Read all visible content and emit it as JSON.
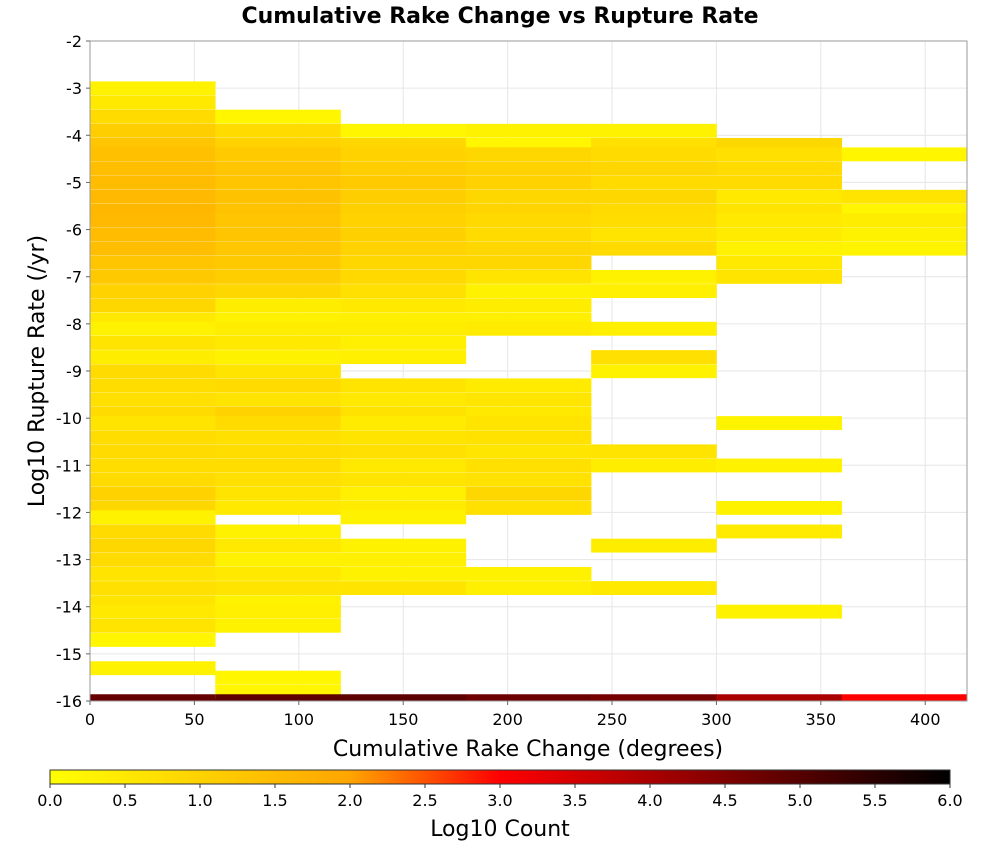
{
  "chart_data": {
    "type": "heatmap",
    "title": "Cumulative Rake Change vs Rupture Rate",
    "xlabel": "Cumulative Rake Change (degrees)",
    "ylabel": "Log10 Rupture Rate (/yr)",
    "xlim": [
      0,
      420
    ],
    "ylim": [
      -16,
      -2
    ],
    "x_ticks": [
      0,
      50,
      100,
      150,
      200,
      250,
      300,
      350,
      400
    ],
    "y_ticks": [
      -16,
      -15,
      -14,
      -13,
      -12,
      -11,
      -10,
      -9,
      -8,
      -7,
      -6,
      -5,
      -4,
      -3,
      -2
    ],
    "x_bin_width": 60,
    "y_bin_height": 0.286,
    "grid": true,
    "colorbar": {
      "label": "Log10 Count",
      "range": [
        0.0,
        6.0
      ],
      "ticks": [
        "0.0",
        "0.5",
        "1.0",
        "1.5",
        "2.0",
        "2.5",
        "3.0",
        "3.5",
        "4.0",
        "4.5",
        "5.0",
        "5.5",
        "6.0"
      ],
      "colors": [
        "#ffff00",
        "#ffa500",
        "#ff0000",
        "#000000"
      ]
    },
    "series": [
      {
        "x_start": 0,
        "cells": [
          [
            -3.0,
            0.3
          ],
          [
            -3.3,
            0.5
          ],
          [
            -3.6,
            0.8
          ],
          [
            -3.9,
            1.1
          ],
          [
            -4.2,
            1.3
          ],
          [
            -4.4,
            1.4
          ],
          [
            -4.7,
            1.45
          ],
          [
            -5.0,
            1.5
          ],
          [
            -5.3,
            1.55
          ],
          [
            -5.6,
            1.6
          ],
          [
            -5.8,
            1.55
          ],
          [
            -6.1,
            1.5
          ],
          [
            -6.4,
            1.45
          ],
          [
            -6.7,
            1.3
          ],
          [
            -7.0,
            1.2
          ],
          [
            -7.3,
            1.0
          ],
          [
            -7.6,
            0.9
          ],
          [
            -7.9,
            0.5
          ],
          [
            -8.1,
            0.3
          ],
          [
            -8.4,
            0.6
          ],
          [
            -8.7,
            0.4
          ],
          [
            -9.0,
            0.8
          ],
          [
            -9.3,
            0.75
          ],
          [
            -9.6,
            0.7
          ],
          [
            -9.9,
            0.8
          ],
          [
            -10.1,
            0.6
          ],
          [
            -10.4,
            0.75
          ],
          [
            -10.7,
            0.8
          ],
          [
            -11.0,
            0.75
          ],
          [
            -11.3,
            0.8
          ],
          [
            -11.6,
            1.0
          ],
          [
            -11.9,
            0.9
          ],
          [
            -12.1,
            0.3
          ],
          [
            -12.4,
            0.8
          ],
          [
            -12.7,
            0.9
          ],
          [
            -13.0,
            0.8
          ],
          [
            -13.3,
            0.6
          ],
          [
            -13.6,
            0.7
          ],
          [
            -13.9,
            0.6
          ],
          [
            -14.1,
            0.5
          ],
          [
            -14.4,
            0.6
          ],
          [
            -14.7,
            0.2
          ],
          [
            -15.3,
            0.3
          ],
          [
            -16.0,
            4.8
          ]
        ]
      },
      {
        "x_start": 60,
        "cells": [
          [
            -3.6,
            0.2
          ],
          [
            -3.9,
            0.8
          ],
          [
            -4.2,
            1.0
          ],
          [
            -4.4,
            1.15
          ],
          [
            -4.7,
            1.3
          ],
          [
            -5.0,
            1.3
          ],
          [
            -5.3,
            1.35
          ],
          [
            -5.6,
            1.35
          ],
          [
            -5.8,
            1.3
          ],
          [
            -6.1,
            1.3
          ],
          [
            -6.4,
            1.25
          ],
          [
            -6.7,
            1.2
          ],
          [
            -7.0,
            1.1
          ],
          [
            -7.3,
            0.9
          ],
          [
            -7.6,
            0.4
          ],
          [
            -7.9,
            0.3
          ],
          [
            -8.1,
            0.4
          ],
          [
            -8.4,
            0.5
          ],
          [
            -8.7,
            0.3
          ],
          [
            -9.0,
            0.6
          ],
          [
            -9.3,
            0.8
          ],
          [
            -9.6,
            0.6
          ],
          [
            -9.9,
            1.0
          ],
          [
            -10.1,
            0.8
          ],
          [
            -10.4,
            0.7
          ],
          [
            -10.7,
            0.75
          ],
          [
            -11.0,
            0.75
          ],
          [
            -11.3,
            0.7
          ],
          [
            -11.6,
            0.6
          ],
          [
            -11.9,
            0.5
          ],
          [
            -12.4,
            0.3
          ],
          [
            -12.7,
            0.5
          ],
          [
            -13.0,
            0.3
          ],
          [
            -13.3,
            0.5
          ],
          [
            -13.6,
            0.6
          ],
          [
            -13.9,
            0.3
          ],
          [
            -14.1,
            0.35
          ],
          [
            -14.4,
            0.3
          ],
          [
            -15.5,
            0.2
          ],
          [
            -15.8,
            0.2
          ],
          [
            -16.0,
            4.9
          ]
        ]
      },
      {
        "x_start": 120,
        "cells": [
          [
            -3.9,
            0.2
          ],
          [
            -4.2,
            0.9
          ],
          [
            -4.4,
            1.0
          ],
          [
            -4.7,
            1.1
          ],
          [
            -5.0,
            1.15
          ],
          [
            -5.3,
            1.1
          ],
          [
            -5.6,
            1.05
          ],
          [
            -5.8,
            1.0
          ],
          [
            -6.1,
            1.05
          ],
          [
            -6.4,
            1.0
          ],
          [
            -6.7,
            0.9
          ],
          [
            -7.0,
            0.85
          ],
          [
            -7.3,
            0.7
          ],
          [
            -7.6,
            0.5
          ],
          [
            -7.9,
            0.35
          ],
          [
            -8.1,
            0.4
          ],
          [
            -8.4,
            0.35
          ],
          [
            -8.7,
            0.35
          ],
          [
            -9.3,
            0.6
          ],
          [
            -9.6,
            0.5
          ],
          [
            -9.9,
            0.65
          ],
          [
            -10.1,
            0.45
          ],
          [
            -10.4,
            0.6
          ],
          [
            -10.7,
            0.7
          ],
          [
            -11.0,
            0.5
          ],
          [
            -11.3,
            0.6
          ],
          [
            -11.6,
            0.35
          ],
          [
            -11.9,
            0.45
          ],
          [
            -12.1,
            0.3
          ],
          [
            -12.7,
            0.3
          ],
          [
            -13.0,
            0.35
          ],
          [
            -13.3,
            0.3
          ],
          [
            -13.6,
            0.6
          ],
          [
            -16.0,
            4.9
          ]
        ]
      },
      {
        "x_start": 180,
        "cells": [
          [
            -3.9,
            0.3
          ],
          [
            -4.2,
            0.2
          ],
          [
            -4.4,
            0.9
          ],
          [
            -4.7,
            1.0
          ],
          [
            -5.0,
            1.0
          ],
          [
            -5.3,
            0.9
          ],
          [
            -5.6,
            0.95
          ],
          [
            -5.8,
            0.85
          ],
          [
            -6.1,
            0.8
          ],
          [
            -6.4,
            0.9
          ],
          [
            -6.7,
            0.9
          ],
          [
            -7.0,
            0.6
          ],
          [
            -7.3,
            0.3
          ],
          [
            -7.6,
            0.4
          ],
          [
            -7.9,
            0.35
          ],
          [
            -8.1,
            0.45
          ],
          [
            -9.3,
            0.45
          ],
          [
            -9.6,
            0.55
          ],
          [
            -9.9,
            0.5
          ],
          [
            -10.1,
            0.6
          ],
          [
            -10.4,
            0.65
          ],
          [
            -10.7,
            0.55
          ],
          [
            -11.0,
            0.7
          ],
          [
            -11.3,
            0.65
          ],
          [
            -11.6,
            0.9
          ],
          [
            -11.9,
            0.7
          ],
          [
            -13.3,
            0.3
          ],
          [
            -13.6,
            0.35
          ],
          [
            -16.0,
            4.7
          ]
        ]
      },
      {
        "x_start": 240,
        "cells": [
          [
            -3.9,
            0.3
          ],
          [
            -4.2,
            0.7
          ],
          [
            -4.4,
            0.8
          ],
          [
            -4.7,
            0.9
          ],
          [
            -5.0,
            0.8
          ],
          [
            -5.3,
            0.9
          ],
          [
            -5.6,
            0.8
          ],
          [
            -5.8,
            0.75
          ],
          [
            -6.1,
            0.6
          ],
          [
            -6.4,
            0.8
          ],
          [
            -7.0,
            0.3
          ],
          [
            -7.3,
            0.35
          ],
          [
            -8.1,
            0.35
          ],
          [
            -8.7,
            0.7
          ],
          [
            -9.0,
            0.3
          ],
          [
            -10.7,
            0.6
          ],
          [
            -11.0,
            0.4
          ],
          [
            -12.7,
            0.4
          ],
          [
            -13.6,
            0.5
          ],
          [
            -16.0,
            4.6
          ]
        ]
      },
      {
        "x_start": 300,
        "cells": [
          [
            -4.2,
            0.9
          ],
          [
            -4.4,
            0.7
          ],
          [
            -4.7,
            0.8
          ],
          [
            -5.0,
            0.8
          ],
          [
            -5.3,
            0.5
          ],
          [
            -5.6,
            0.6
          ],
          [
            -5.8,
            0.5
          ],
          [
            -6.1,
            0.45
          ],
          [
            -6.4,
            0.3
          ],
          [
            -6.7,
            0.5
          ],
          [
            -7.0,
            0.6
          ],
          [
            -10.1,
            0.25
          ],
          [
            -11.0,
            0.3
          ],
          [
            -11.9,
            0.3
          ],
          [
            -12.4,
            0.45
          ],
          [
            -14.1,
            0.3
          ],
          [
            -16.0,
            4.0
          ]
        ]
      },
      {
        "x_start": 360,
        "cells": [
          [
            -4.4,
            0.2
          ],
          [
            -5.3,
            0.6
          ],
          [
            -5.6,
            0.2
          ],
          [
            -5.8,
            0.4
          ],
          [
            -6.1,
            0.3
          ],
          [
            -6.4,
            0.25
          ],
          [
            -16.0,
            3.0
          ]
        ]
      }
    ]
  }
}
